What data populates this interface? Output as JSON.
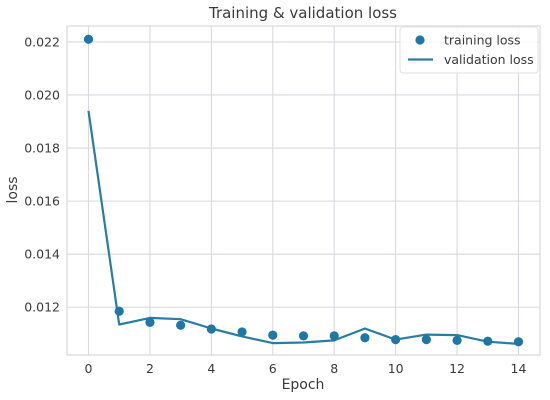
{
  "chart_data": {
    "type": "line",
    "title": "Training & validation loss",
    "xlabel": "Epoch",
    "ylabel": "loss",
    "xlim": [
      -0.7,
      14.7
    ],
    "ylim": [
      0.0102,
      0.0226
    ],
    "xticks": [
      0,
      2,
      4,
      6,
      8,
      10,
      12,
      14
    ],
    "yticks": [
      0.012,
      0.014,
      0.016,
      0.018,
      0.02,
      0.022
    ],
    "ytick_labels": [
      "0.012",
      "0.014",
      "0.016",
      "0.018",
      "0.020",
      "0.022"
    ],
    "grid": true,
    "legend_position": "top-right",
    "series": [
      {
        "name": "training loss",
        "style": "scatter",
        "color": "#1f77a4",
        "x": [
          0,
          1,
          2,
          3,
          4,
          5,
          6,
          7,
          8,
          9,
          10,
          11,
          12,
          13,
          14
        ],
        "y": [
          0.0221,
          0.01185,
          0.01143,
          0.01132,
          0.01118,
          0.01107,
          0.01095,
          0.01092,
          0.01092,
          0.01085,
          0.01078,
          0.01078,
          0.01075,
          0.01072,
          0.0107
        ]
      },
      {
        "name": "validation loss",
        "style": "line",
        "color": "#2a7ca3",
        "x": [
          0,
          1,
          2,
          3,
          4,
          5,
          6,
          7,
          8,
          9,
          10,
          11,
          12,
          13,
          14
        ],
        "y": [
          0.0194,
          0.01135,
          0.0116,
          0.01155,
          0.0112,
          0.0109,
          0.01065,
          0.01067,
          0.01075,
          0.0112,
          0.01078,
          0.01097,
          0.01095,
          0.0107,
          0.01062
        ]
      }
    ]
  }
}
